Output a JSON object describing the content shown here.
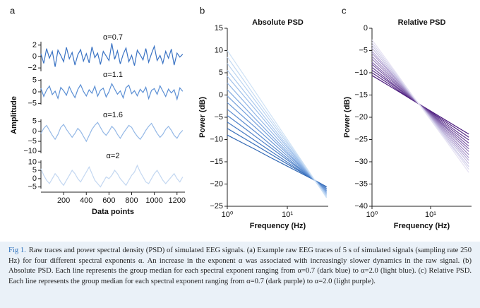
{
  "chart_data": [
    {
      "type": "line",
      "panel": "a",
      "xlabel": "Data points",
      "ylabel": "Amplitude",
      "xlim": [
        0,
        1270
      ],
      "xticks": [
        200,
        400,
        600,
        800,
        1000,
        1200
      ],
      "x": [
        0,
        25,
        50,
        75,
        100,
        125,
        150,
        175,
        200,
        225,
        250,
        275,
        300,
        325,
        350,
        375,
        400,
        425,
        450,
        475,
        500,
        525,
        550,
        575,
        600,
        625,
        650,
        675,
        700,
        725,
        750,
        775,
        800,
        825,
        850,
        875,
        900,
        925,
        950,
        975,
        1000,
        1025,
        1050,
        1075,
        1100,
        1125,
        1150,
        1175,
        1200,
        1225,
        1250
      ],
      "series": [
        {
          "name": "α=0.7",
          "color": "#3a73c4",
          "ylim": [
            -2.6,
            2.6
          ],
          "yticks": [
            2,
            0,
            {
              "value": -2,
              "label": "−2"
            }
          ],
          "values": [
            0.5,
            -1.2,
            1.4,
            -0.3,
            0.9,
            -1.8,
            1.1,
            0.2,
            -0.9,
            1.6,
            -0.4,
            0.7,
            -1.5,
            0.3,
            1.2,
            -0.8,
            0.5,
            -1.1,
            1.7,
            -0.2,
            0.6,
            -1.4,
            0.9,
            0.1,
            -0.7,
            2.3,
            -0.5,
            1.0,
            -1.3,
            0.4,
            1.5,
            -0.9,
            0.2,
            -1.6,
            1.1,
            0.3,
            -0.6,
            1.4,
            -1.0,
            0.5,
            1.8,
            -0.7,
            0.2,
            -1.2,
            0.9,
            -0.3,
            1.3,
            -1.5,
            0.6,
            -0.1,
            0.4
          ]
        },
        {
          "name": "α=1.1",
          "color": "#5b8fd4",
          "ylim": [
            -5.5,
            5.5
          ],
          "yticks": [
            5,
            0,
            {
              "value": -5,
              "label": "−5"
            }
          ],
          "values": [
            1.5,
            -2.0,
            0.8,
            2.5,
            -1.2,
            0.3,
            -2.8,
            1.9,
            0.5,
            -1.5,
            2.2,
            -0.4,
            -2.5,
            1.0,
            3.1,
            0.2,
            -1.8,
            0.9,
            -0.6,
            2.4,
            -1.9,
            0.7,
            1.6,
            -2.2,
            0.1,
            3.5,
            1.2,
            -1.0,
            0.4,
            -2.6,
            1.8,
            2.9,
            -0.8,
            0.5,
            -1.7,
            1.1,
            -0.3,
            2.0,
            -2.9,
            0.6,
            1.4,
            -1.1,
            2.6,
            0.3,
            -2.0,
            1.2,
            -0.5,
            0.9,
            -3.2,
            1.7,
            0.2
          ]
        },
        {
          "name": "α=1.6",
          "color": "#94b8e6",
          "ylim": [
            -11,
            6
          ],
          "yticks": [
            5,
            0,
            {
              "value": -5,
              "label": "−5"
            },
            {
              "value": -10,
              "label": "−10"
            }
          ],
          "values": [
            -1,
            1.5,
            3,
            0.5,
            -2,
            -4,
            -1.5,
            2,
            3.5,
            1,
            -1,
            -3,
            -1,
            1.5,
            0,
            -2.5,
            -5,
            -2,
            1,
            3,
            4.5,
            2,
            -0.5,
            -2,
            0,
            2.5,
            1,
            -1.5,
            -3.5,
            -1,
            1,
            3,
            2,
            -0.5,
            -2.5,
            -4,
            -2,
            0.5,
            2.5,
            4,
            1.5,
            -1,
            -3,
            -1.5,
            1,
            2.5,
            0.5,
            -2,
            -3.5,
            -1,
            0.5
          ]
        },
        {
          "name": "α=2",
          "color": "#c3d7f1",
          "ylim": [
            -6,
            11
          ],
          "yticks": [
            10,
            5,
            0,
            {
              "value": -5,
              "label": "−5"
            }
          ],
          "values": [
            6,
            2,
            -1,
            -3,
            0,
            3,
            1,
            -2,
            -4,
            -1,
            2,
            5,
            3,
            0,
            -2,
            1,
            4,
            7,
            3,
            -1,
            -3,
            -5,
            -2,
            1,
            0,
            2,
            5,
            3,
            0,
            -2,
            -4,
            -1,
            2,
            4,
            8,
            4,
            1,
            -2,
            -3,
            0,
            3,
            5,
            2,
            -1,
            -3,
            -1,
            1,
            3,
            0,
            -2,
            1
          ]
        }
      ]
    },
    {
      "type": "line",
      "panel": "b",
      "title": "Absolute PSD",
      "xlabel": "Frequency (Hz)",
      "ylabel": "Power (dB)",
      "xscale": "log",
      "xlim": [
        1,
        48
      ],
      "xticks": [
        {
          "value": 1,
          "label": "10⁰"
        },
        {
          "value": 10,
          "label": "10¹"
        }
      ],
      "ylim": [
        -25,
        15
      ],
      "yticks": [
        15,
        10,
        5,
        0,
        {
          "value": -5,
          "label": "−5"
        },
        {
          "value": -10,
          "label": "−10"
        },
        {
          "value": -15,
          "label": "−15"
        },
        {
          "value": -20,
          "label": "−20"
        },
        {
          "value": -25,
          "label": "−25"
        }
      ],
      "x": [
        1,
        2,
        3,
        5,
        10,
        20,
        30,
        45
      ],
      "series": [
        {
          "color": "#2f66b3",
          "values": [
            -9,
            -11.1,
            -12.3,
            -13.9,
            -16,
            -18.1,
            -19.3,
            -20.6
          ]
        },
        {
          "color": "#3a70bb",
          "values": [
            -7.5,
            -9.9,
            -11.3,
            -13.1,
            -15.5,
            -17.9,
            -19.3,
            -20.7
          ]
        },
        {
          "color": "#4579c2",
          "values": [
            -6.1,
            -8.8,
            -10.4,
            -12.4,
            -15.1,
            -17.8,
            -19.4,
            -21.0
          ]
        },
        {
          "color": "#5183c9",
          "values": [
            -4.6,
            -7.6,
            -9.4,
            -11.6,
            -14.6,
            -17.6,
            -19.4,
            -21.1
          ]
        },
        {
          "color": "#5d8dd0",
          "values": [
            -3.2,
            -6.5,
            -8.4,
            -10.9,
            -14.2,
            -17.5,
            -19.4,
            -21.4
          ]
        },
        {
          "color": "#6997d6",
          "values": [
            -1.7,
            -5.3,
            -7.4,
            -10.1,
            -13.7,
            -17.3,
            -19.4,
            -21.5
          ]
        },
        {
          "color": "#76a1dc",
          "values": [
            -0.2,
            -4.1,
            -6.4,
            -9.3,
            -13.2,
            -17.1,
            -19.4,
            -21.7
          ]
        },
        {
          "color": "#83abe1",
          "values": [
            1.2,
            -3.0,
            -5.5,
            -8.6,
            -12.8,
            -17.0,
            -19.5,
            -21.9
          ]
        },
        {
          "color": "#90b5e6",
          "values": [
            2.7,
            -1.8,
            -4.5,
            -7.8,
            -12.3,
            -16.8,
            -19.5,
            -22.1
          ]
        },
        {
          "color": "#9ebfea",
          "values": [
            4.2,
            -0.6,
            -3.4,
            -7.0,
            -11.8,
            -16.6,
            -19.4,
            -22.2
          ]
        },
        {
          "color": "#abc9ee",
          "values": [
            5.6,
            0.5,
            -2.5,
            -6.3,
            -11.4,
            -16.5,
            -19.5,
            -22.5
          ]
        },
        {
          "color": "#b9d3f1",
          "values": [
            7.1,
            1.7,
            -1.5,
            -5.5,
            -10.9,
            -16.3,
            -19.5,
            -22.7
          ]
        },
        {
          "color": "#c4daf3",
          "values": [
            8.5,
            2.8,
            -0.6,
            -4.8,
            -10.5,
            -16.2,
            -19.6,
            -22.9
          ]
        },
        {
          "color": "#cfe2f5",
          "values": [
            10,
            4.0,
            0.5,
            -4.0,
            -10,
            -16.0,
            -19.5,
            -23.1
          ]
        }
      ]
    },
    {
      "type": "line",
      "panel": "c",
      "title": "Relative PSD",
      "xlabel": "Frequency (Hz)",
      "ylabel": "Power (dB)",
      "xscale": "log",
      "xlim": [
        1,
        50
      ],
      "xticks": [
        {
          "value": 1,
          "label": "10⁰"
        },
        {
          "value": 10,
          "label": "10¹"
        }
      ],
      "ylim": [
        -40,
        0
      ],
      "yticks": [
        0,
        {
          "value": -5,
          "label": "−5"
        },
        {
          "value": -10,
          "label": "−10"
        },
        {
          "value": -15,
          "label": "−15"
        },
        {
          "value": -20,
          "label": "−20"
        },
        {
          "value": -25,
          "label": "−25"
        },
        {
          "value": -30,
          "label": "−30"
        },
        {
          "value": -35,
          "label": "−35"
        },
        {
          "value": -40,
          "label": "−40"
        }
      ],
      "x": [
        1,
        2,
        3,
        5,
        10,
        20,
        30,
        45
      ],
      "series": [
        {
          "color": "#4b1a7d",
          "values": [
            -10.6,
            -13.0,
            -14.4,
            -16.2,
            -18.6,
            -21.0,
            -22.4,
            -23.8
          ]
        },
        {
          "color": "#572a87",
          "values": [
            -10.0,
            -12.6,
            -14.2,
            -16.1,
            -18.8,
            -21.4,
            -22.9,
            -24.5
          ]
        },
        {
          "color": "#633a91",
          "values": [
            -9.4,
            -12.2,
            -13.9,
            -16.0,
            -18.9,
            -21.8,
            -23.5,
            -25.1
          ]
        },
        {
          "color": "#6f4a9b",
          "values": [
            -8.8,
            -11.9,
            -13.7,
            -16.0,
            -19.1,
            -22.2,
            -24.0,
            -25.8
          ]
        },
        {
          "color": "#7b5aa5",
          "values": [
            -8.1,
            -11.5,
            -13.4,
            -15.9,
            -19.2,
            -22.6,
            -24.5,
            -26.5
          ]
        },
        {
          "color": "#876aaf",
          "values": [
            -7.6,
            -11.1,
            -13.2,
            -15.8,
            -19.4,
            -22.9,
            -25.0,
            -27.1
          ]
        },
        {
          "color": "#947bb9",
          "values": [
            -6.9,
            -10.7,
            -12.9,
            -15.7,
            -19.5,
            -23.3,
            -25.5,
            -27.7
          ]
        },
        {
          "color": "#a08bc3",
          "values": [
            -6.3,
            -10.3,
            -12.7,
            -15.6,
            -19.7,
            -23.7,
            -26.1,
            -28.4
          ]
        },
        {
          "color": "#ac9bcd",
          "values": [
            -5.6,
            -9.9,
            -12.4,
            -15.6,
            -19.8,
            -24.1,
            -26.6,
            -29.1
          ]
        },
        {
          "color": "#b8abd6",
          "values": [
            -5.1,
            -9.6,
            -12.2,
            -15.5,
            -20.0,
            -24.5,
            -27.1,
            -29.7
          ]
        },
        {
          "color": "#c4bcdf",
          "values": [
            -4.4,
            -9.2,
            -11.9,
            -15.4,
            -20.1,
            -24.9,
            -27.6,
            -30.4
          ]
        },
        {
          "color": "#d0cce8",
          "values": [
            -3.8,
            -8.8,
            -11.7,
            -15.3,
            -20.3,
            -25.3,
            -28.2,
            -31.1
          ]
        },
        {
          "color": "#dbd9ee",
          "values": [
            -3.2,
            -8.4,
            -11.4,
            -15.3,
            -20.4,
            -25.6,
            -28.6,
            -31.7
          ]
        },
        {
          "color": "#e6e2f3",
          "values": [
            -2.6,
            -8.0,
            -11.2,
            -15.2,
            -20.6,
            -26.0,
            -29.2,
            -32.4
          ]
        }
      ]
    }
  ],
  "caption": {
    "label": "Fig 1.",
    "text": "Raw traces and power spectral density (PSD) of simulated EEG signals. (a) Example raw EEG traces of 5 s of simulated signals (sampling rate 250 Hz) for four different spectral exponents α. An increase in the exponent α was associated with increasingly slower dynamics in the raw signal. (b) Absolute PSD. Each line represents the group median for each spectral exponent ranging from α=0.7 (dark blue) to α=2.0 (light blue). (c) Relative PSD. Each line represents the group median for each spectral exponent ranging from α=0.7 (dark purple) to α=2.0 (light purple)."
  }
}
